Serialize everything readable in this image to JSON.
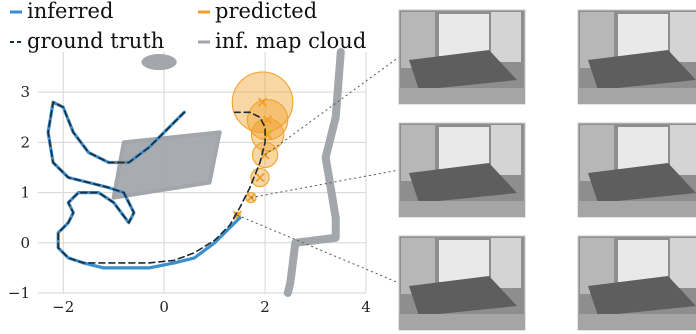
{
  "chart_data": {
    "type": "line",
    "title": "",
    "xlabel": "",
    "ylabel": "",
    "xlim": [
      -2.5,
      4.0
    ],
    "ylim": [
      -1.0,
      3.8
    ],
    "xticks": [
      "−2",
      "0",
      "2",
      "4"
    ],
    "xtick_values": [
      -2,
      0,
      2,
      4
    ],
    "yticks": [
      "−1",
      "0",
      "1",
      "2",
      "3"
    ],
    "ytick_values": [
      -1,
      0,
      1,
      2,
      3
    ],
    "grid": true,
    "legend": {
      "placement": "top",
      "entries": [
        {
          "key": "inferred",
          "label": "inferred",
          "color": "#3b8fcc",
          "style": "solid"
        },
        {
          "key": "predicted",
          "label": "predicted",
          "color": "#f0a028",
          "style": "solid"
        },
        {
          "key": "ground_truth",
          "label": "ground truth",
          "color": "#1e2a38",
          "style": "dashed"
        },
        {
          "key": "map",
          "label": "inf. map cloud",
          "color": "#a3a6ab",
          "style": "solid"
        }
      ]
    },
    "series": [
      {
        "name": "inferred",
        "color": "#3b8fcc",
        "x": [
          0.4,
          0.1,
          -0.3,
          -0.7,
          -1.1,
          -1.5,
          -1.8,
          -2.0,
          -2.2,
          -2.3,
          -2.2,
          -1.9,
          -1.5,
          -1.1,
          -0.8,
          -0.6,
          -0.7,
          -1.0,
          -1.3,
          -1.7,
          -1.9,
          -1.8,
          -1.9,
          -2.1,
          -2.1,
          -1.9,
          -1.6,
          -1.2,
          -0.8,
          -0.3,
          0.2,
          0.6,
          1.0,
          1.3,
          1.5
        ],
        "y": [
          2.6,
          2.3,
          1.9,
          1.6,
          1.6,
          1.8,
          2.2,
          2.7,
          2.8,
          2.2,
          1.6,
          1.3,
          1.2,
          1.1,
          1.0,
          0.6,
          0.4,
          0.8,
          1.0,
          1.0,
          0.8,
          0.6,
          0.4,
          0.2,
          -0.1,
          -0.3,
          -0.4,
          -0.5,
          -0.5,
          -0.5,
          -0.4,
          -0.3,
          0.0,
          0.3,
          0.5
        ]
      },
      {
        "name": "ground truth",
        "color": "#1e2a38",
        "x": [
          0.4,
          0.1,
          -0.3,
          -0.7,
          -1.1,
          -1.5,
          -1.8,
          -2.0,
          -2.2,
          -2.3,
          -2.2,
          -1.9,
          -1.5,
          -1.1,
          -0.8,
          -0.6,
          -0.7,
          -1.0,
          -1.3,
          -1.7,
          -1.9,
          -1.8,
          -1.9,
          -2.1,
          -2.1,
          -1.9,
          -1.6,
          -1.2,
          -0.8,
          -0.3,
          0.2,
          0.6,
          1.0,
          1.3,
          1.5,
          1.7,
          1.9,
          2.0,
          2.0,
          1.9,
          1.7,
          1.4
        ],
        "y": [
          2.6,
          2.3,
          1.9,
          1.6,
          1.6,
          1.8,
          2.2,
          2.7,
          2.8,
          2.2,
          1.6,
          1.3,
          1.2,
          1.1,
          1.0,
          0.6,
          0.4,
          0.8,
          1.0,
          1.0,
          0.8,
          0.6,
          0.4,
          0.2,
          -0.1,
          -0.3,
          -0.4,
          -0.4,
          -0.4,
          -0.4,
          -0.35,
          -0.2,
          0.05,
          0.35,
          0.7,
          1.1,
          1.6,
          2.0,
          2.3,
          2.5,
          2.6,
          2.6
        ]
      }
    ],
    "predicted": {
      "name": "predicted",
      "color": "#f0a028",
      "points": [
        {
          "x": 1.45,
          "y": 0.55,
          "r": 0.05
        },
        {
          "x": 1.72,
          "y": 0.9,
          "r": 0.1
        },
        {
          "x": 1.9,
          "y": 1.3,
          "r": 0.18
        },
        {
          "x": 2.0,
          "y": 1.75,
          "r": 0.25
        },
        {
          "x": 2.05,
          "y": 2.15,
          "r": 0.32
        },
        {
          "x": 2.05,
          "y": 2.45,
          "r": 0.4
        },
        {
          "x": 1.95,
          "y": 2.8,
          "r": 0.6
        }
      ]
    },
    "map_cloud": {
      "name": "inf. map cloud",
      "color": "#a3a6ab",
      "regions": [
        {
          "kind": "rect",
          "corners": [
            [
              -1.0,
              0.9
            ],
            [
              0.9,
              1.2
            ],
            [
              1.1,
              2.2
            ],
            [
              -0.8,
              2.0
            ]
          ]
        },
        {
          "kind": "blob",
          "x": -0.1,
          "y": 3.6,
          "rx": 0.35,
          "ry": 0.1
        },
        {
          "kind": "strip",
          "points": [
            [
              3.5,
              3.8
            ],
            [
              3.4,
              2.5
            ],
            [
              3.2,
              1.7
            ],
            [
              3.4,
              0.5
            ],
            [
              3.4,
              0.1
            ],
            [
              2.6,
              0.0
            ],
            [
              2.5,
              -0.8
            ],
            [
              2.45,
              -1.0
            ]
          ]
        }
      ]
    }
  },
  "thumbnails": {
    "left": [
      {
        "name": "frame-1",
        "label": ""
      },
      {
        "name": "frame-2",
        "label": ""
      },
      {
        "name": "frame-3",
        "label": ""
      }
    ],
    "right": [
      {
        "name": "pred-1",
        "label": ""
      },
      {
        "name": "pred-2",
        "label": ""
      },
      {
        "name": "pred-3",
        "label": ""
      }
    ]
  }
}
